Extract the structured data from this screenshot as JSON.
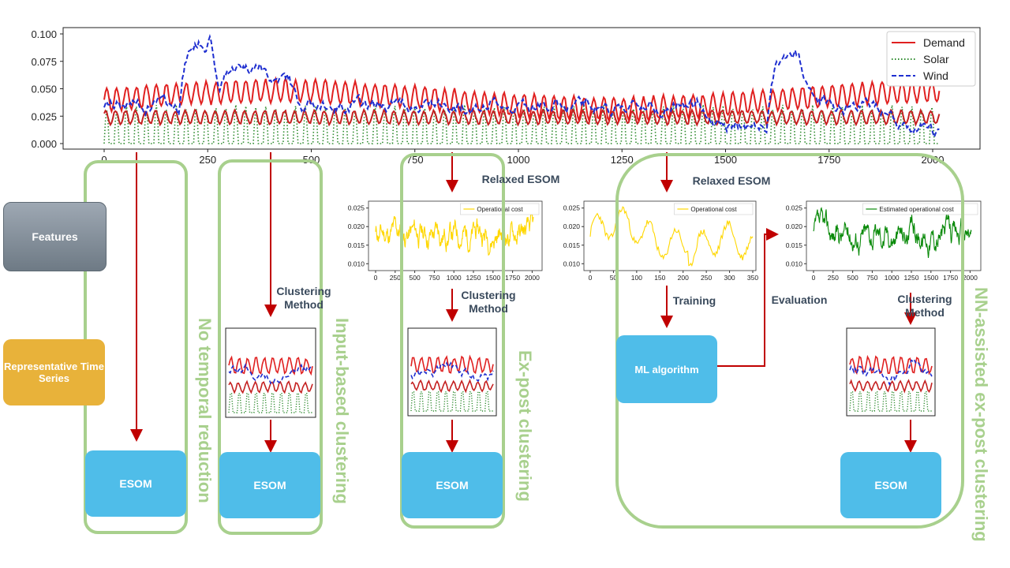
{
  "colors": {
    "demand": "#e02020",
    "solar": "#2e8b2e",
    "wind": "#1f2fd0",
    "arrow": "#c00000",
    "frame": "#a8d08d",
    "esom": "#4fbde9",
    "reps": "#e8b23a",
    "opcost": "#ffd700",
    "estcost": "#0a8a0a"
  },
  "left_labels": {
    "features": "Features",
    "representative": "Representative Time Series"
  },
  "methods": {
    "no_reduction": "No temporal reduction",
    "input_based": "Input-based clustering",
    "ex_post": "Ex-post clustering",
    "nn_assisted": "NN-assisted ex-post clustering"
  },
  "boxes": {
    "esom": "ESOM",
    "ml": "ML algorithm"
  },
  "step_labels": {
    "relaxed_esom": "Relaxed ESOM",
    "clustering_method": "Clustering Method",
    "training": "Training",
    "evaluation": "Evaluation"
  },
  "chart_data": [
    {
      "type": "line",
      "x_range": [
        0,
        2016
      ],
      "ylim": [
        0,
        0.1
      ],
      "xticks": [
        "0",
        "250",
        "500",
        "750",
        "1000",
        "1250",
        "1500",
        "1750",
        "2000"
      ],
      "yticks": [
        "0.000",
        "0.025",
        "0.050",
        "0.075",
        "0.100"
      ],
      "legend_position": "top-right",
      "series": [
        {
          "name": "Demand",
          "style": "solid",
          "pattern": "daily cycles, two bands roughly 0.020–0.060"
        },
        {
          "name": "Solar",
          "style": "dotted",
          "pattern": "daily cycles 0–0.040"
        },
        {
          "name": "Wind",
          "style": "dashed",
          "peaks": [
            {
              "x": 230,
              "y": 0.1
            },
            {
              "x": 1640,
              "y": 0.094
            }
          ]
        }
      ]
    },
    {
      "type": "line",
      "series": [
        {
          "name": "Operational cost"
        }
      ],
      "ylim": [
        0.009,
        0.026
      ],
      "yticks": [
        "0.010",
        "0.015",
        "0.020",
        "0.025"
      ],
      "xticks": [
        "0",
        "250",
        "500",
        "750",
        "1000",
        "1250",
        "1500",
        "1750",
        "2000"
      ]
    },
    {
      "type": "line",
      "series": [
        {
          "name": "Operational cost"
        }
      ],
      "ylim": [
        0.009,
        0.026
      ],
      "yticks": [
        "0.010",
        "0.015",
        "0.020",
        "0.025"
      ],
      "xticks": [
        "0",
        "50",
        "100",
        "150",
        "200",
        "250",
        "300",
        "350"
      ]
    },
    {
      "type": "line",
      "series": [
        {
          "name": "Estimated operational cost"
        }
      ],
      "ylim": [
        0.009,
        0.026
      ],
      "yticks": [
        "0.010",
        "0.015",
        "0.020",
        "0.025"
      ],
      "xticks": [
        "0",
        "250",
        "500",
        "750",
        "1000",
        "1250",
        "1500",
        "1750",
        "2000"
      ]
    }
  ]
}
